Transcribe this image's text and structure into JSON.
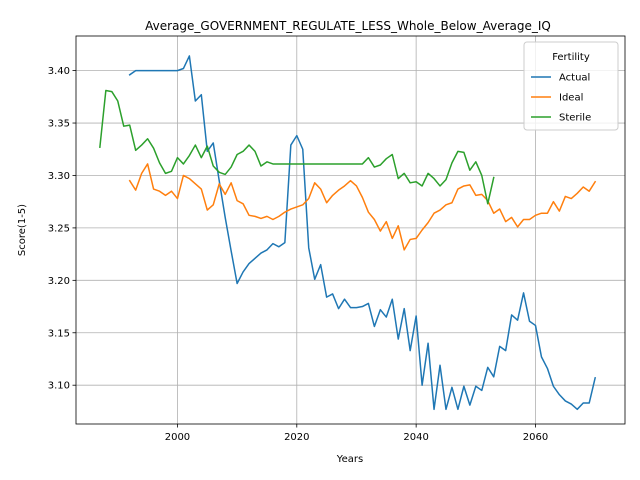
{
  "chart_data": {
    "type": "line",
    "title": "Average_GOVERNMENT_REGULATE_LESS_Whole_Below_Average_IQ",
    "xlabel": "Years",
    "ylabel": "Score(1-5)",
    "xlim": [
      1983,
      2075
    ],
    "ylim": [
      3.063,
      3.433
    ],
    "xticks": [
      2000,
      2020,
      2040,
      2060
    ],
    "yticks": [
      3.1,
      3.15,
      3.2,
      3.25,
      3.3,
      3.35,
      3.4
    ],
    "ytick_labels": [
      "3.10",
      "3.15",
      "3.20",
      "3.25",
      "3.30",
      "3.35",
      "3.40"
    ],
    "grid": true,
    "legend": {
      "title": "Fertility",
      "position": "upper-right"
    },
    "series": [
      {
        "name": "Actual",
        "color": "#1f77b4",
        "x": [
          1992,
          1993,
          1994,
          1995,
          1996,
          1997,
          1998,
          1999,
          2000,
          2001,
          2002,
          2003,
          2004,
          2005,
          2006,
          2007,
          2008,
          2009,
          2010,
          2011,
          2012,
          2013,
          2014,
          2015,
          2016,
          2017,
          2018,
          2019,
          2020,
          2021,
          2022,
          2023,
          2024,
          2025,
          2026,
          2027,
          2028,
          2029,
          2030,
          2031,
          2032,
          2033,
          2034,
          2035,
          2036,
          2037,
          2038,
          2039,
          2040,
          2041,
          2042,
          2043,
          2044,
          2045,
          2046,
          2047,
          2048,
          2049,
          2050,
          2051,
          2052,
          2053,
          2054,
          2055,
          2056,
          2057,
          2058,
          2059,
          2060,
          2061,
          2062,
          2063,
          2064,
          2065,
          2066,
          2067,
          2068,
          2069,
          2070
        ],
        "y": [
          3.396,
          3.4,
          3.4,
          3.4,
          3.4,
          3.4,
          3.4,
          3.4,
          3.4,
          3.402,
          3.414,
          3.371,
          3.377,
          3.323,
          3.331,
          3.295,
          3.26,
          3.228,
          3.197,
          3.208,
          3.216,
          3.221,
          3.226,
          3.229,
          3.235,
          3.232,
          3.236,
          3.329,
          3.338,
          3.325,
          3.231,
          3.201,
          3.215,
          3.184,
          3.187,
          3.173,
          3.182,
          3.174,
          3.174,
          3.175,
          3.178,
          3.156,
          3.172,
          3.165,
          3.182,
          3.144,
          3.173,
          3.133,
          3.166,
          3.1,
          3.14,
          3.077,
          3.119,
          3.077,
          3.098,
          3.077,
          3.099,
          3.081,
          3.099,
          3.095,
          3.117,
          3.108,
          3.137,
          3.133,
          3.167,
          3.162,
          3.188,
          3.161,
          3.157,
          3.127,
          3.116,
          3.099,
          3.091,
          3.085,
          3.082,
          3.077,
          3.083,
          3.083,
          3.107
        ]
      },
      {
        "name": "Ideal",
        "color": "#ff7f0e",
        "x": [
          1992,
          1993,
          1994,
          1995,
          1996,
          1997,
          1998,
          1999,
          2000,
          2001,
          2002,
          2003,
          2004,
          2005,
          2006,
          2007,
          2008,
          2009,
          2010,
          2011,
          2012,
          2013,
          2014,
          2015,
          2016,
          2017,
          2018,
          2019,
          2020,
          2021,
          2022,
          2023,
          2024,
          2025,
          2026,
          2027,
          2028,
          2029,
          2030,
          2031,
          2032,
          2033,
          2034,
          2035,
          2036,
          2037,
          2038,
          2039,
          2040,
          2041,
          2042,
          2043,
          2044,
          2045,
          2046,
          2047,
          2048,
          2049,
          2050,
          2051,
          2052,
          2053,
          2054,
          2055,
          2056,
          2057,
          2058,
          2059,
          2060,
          2061,
          2062,
          2063,
          2064,
          2065,
          2066,
          2067,
          2068,
          2069,
          2070
        ],
        "y": [
          3.295,
          3.286,
          3.302,
          3.311,
          3.287,
          3.285,
          3.281,
          3.285,
          3.278,
          3.3,
          3.297,
          3.292,
          3.287,
          3.267,
          3.272,
          3.292,
          3.282,
          3.293,
          3.276,
          3.273,
          3.262,
          3.261,
          3.259,
          3.261,
          3.258,
          3.261,
          3.265,
          3.268,
          3.27,
          3.272,
          3.278,
          3.293,
          3.287,
          3.274,
          3.281,
          3.286,
          3.29,
          3.295,
          3.29,
          3.279,
          3.265,
          3.258,
          3.247,
          3.256,
          3.24,
          3.252,
          3.229,
          3.239,
          3.24,
          3.248,
          3.255,
          3.264,
          3.267,
          3.272,
          3.274,
          3.287,
          3.29,
          3.291,
          3.281,
          3.282,
          3.276,
          3.264,
          3.268,
          3.256,
          3.26,
          3.251,
          3.258,
          3.258,
          3.262,
          3.264,
          3.264,
          3.275,
          3.266,
          3.28,
          3.278,
          3.283,
          3.289,
          3.285,
          3.294
        ]
      },
      {
        "name": "Sterile",
        "color": "#2ca02c",
        "x": [
          1987,
          1988,
          1989,
          1990,
          1991,
          1992,
          1993,
          1994,
          1995,
          1996,
          1997,
          1998,
          1999,
          2000,
          2001,
          2002,
          2003,
          2004,
          2005,
          2006,
          2007,
          2008,
          2009,
          2010,
          2011,
          2012,
          2013,
          2014,
          2015,
          2016,
          2017,
          2018,
          2019,
          2020,
          2021,
          2022,
          2023,
          2024,
          2025,
          2026,
          2027,
          2028,
          2029,
          2030,
          2031,
          2032,
          2033,
          2034,
          2035,
          2036,
          2037,
          2038,
          2039,
          2040,
          2041,
          2042,
          2043,
          2044,
          2045,
          2046,
          2047,
          2048,
          2049,
          2050,
          2051,
          2052,
          2053
        ],
        "y": [
          3.327,
          3.381,
          3.38,
          3.371,
          3.347,
          3.348,
          3.324,
          3.329,
          3.335,
          3.326,
          3.312,
          3.302,
          3.304,
          3.317,
          3.311,
          3.319,
          3.329,
          3.317,
          3.328,
          3.309,
          3.303,
          3.301,
          3.308,
          3.32,
          3.323,
          3.329,
          3.323,
          3.309,
          3.313,
          3.311,
          3.311,
          3.311,
          3.311,
          3.311,
          3.311,
          3.311,
          3.311,
          3.311,
          3.311,
          3.311,
          3.311,
          3.311,
          3.311,
          3.311,
          3.311,
          3.317,
          3.308,
          3.31,
          3.316,
          3.32,
          3.297,
          3.302,
          3.293,
          3.294,
          3.29,
          3.302,
          3.297,
          3.29,
          3.296,
          3.312,
          3.323,
          3.322,
          3.305,
          3.313,
          3.3,
          3.273,
          3.298
        ]
      }
    ]
  }
}
